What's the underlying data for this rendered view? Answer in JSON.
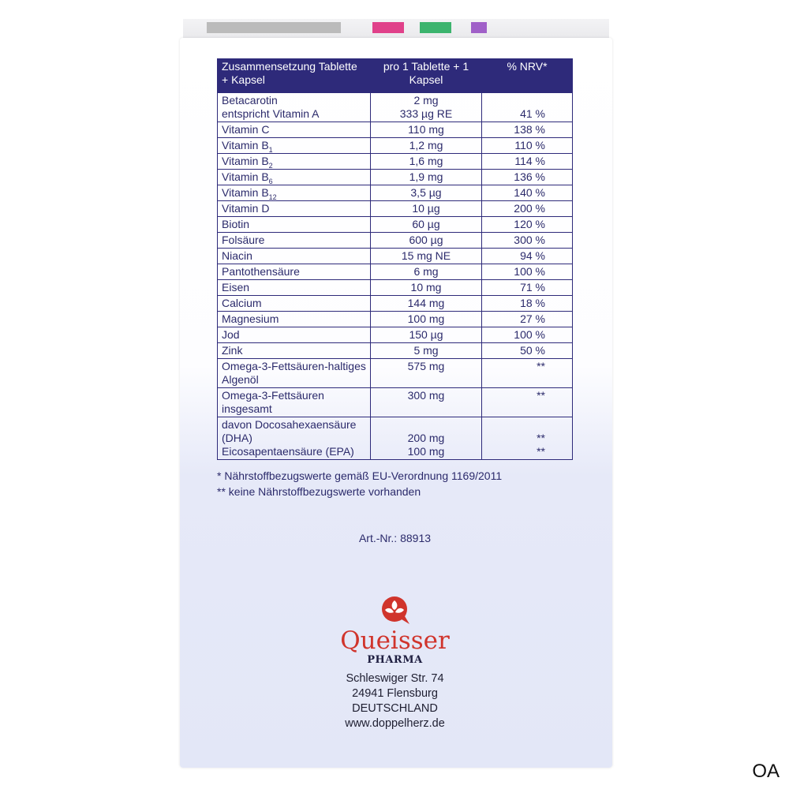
{
  "table": {
    "headers": [
      "Zusammensetzung Tablette + Kapsel",
      "pro 1 Tablette + 1 Kapsel",
      "% NRV*"
    ],
    "rows": [
      {
        "name": "Betacarotin",
        "amount": "2 mg",
        "nrv": ""
      },
      {
        "name": "entspricht Vitamin A",
        "amount": "333 µg RE",
        "nrv": "41 %"
      },
      {
        "name": "Vitamin C",
        "amount": "110 mg",
        "nrv": "138 %"
      },
      {
        "name": "Vitamin B",
        "sub": "1",
        "amount": "1,2 mg",
        "nrv": "110 %"
      },
      {
        "name": "Vitamin B",
        "sub": "2",
        "amount": "1,6 mg",
        "nrv": "114 %"
      },
      {
        "name": "Vitamin B",
        "sub": "6",
        "amount": "1,9 mg",
        "nrv": "136 %"
      },
      {
        "name": "Vitamin B",
        "sub": "12",
        "amount": "3,5 µg",
        "nrv": "140 %"
      },
      {
        "name": "Vitamin D",
        "amount": "10 µg",
        "nrv": "200 %"
      },
      {
        "name": "Biotin",
        "amount": "60 µg",
        "nrv": "120 %"
      },
      {
        "name": "Folsäure",
        "amount": "600 µg",
        "nrv": "300 %"
      },
      {
        "name": "Niacin",
        "amount": "15 mg NE",
        "nrv": "94 %"
      },
      {
        "name": "Pantothensäure",
        "amount": "6 mg",
        "nrv": "100 %"
      },
      {
        "name": "Eisen",
        "amount": "10 mg",
        "nrv": "71 %"
      },
      {
        "name": "Calcium",
        "amount": "144 mg",
        "nrv": "18 %"
      },
      {
        "name": "Magnesium",
        "amount": "100 mg",
        "nrv": "27 %"
      },
      {
        "name": "Jod",
        "amount": "150 µg",
        "nrv": "100 %"
      },
      {
        "name": "Zink",
        "amount": "5 mg",
        "nrv": "50 %"
      },
      {
        "name": "Omega-3-Fettsäuren-haltiges Algenöl",
        "amount": "575 mg",
        "nrv": "**"
      },
      {
        "name": "Omega-3-Fettsäuren insgesamt",
        "amount": "300 mg",
        "nrv": "**"
      },
      {
        "name": "davon Docosahexaensäure (DHA)",
        "amount": "200 mg",
        "nrv": "**"
      },
      {
        "name": "Eicosapentaensäure (EPA)",
        "amount": "100 mg",
        "nrv": "**"
      }
    ]
  },
  "footnotes": [
    "* Nährstoffbezugswerte gemäß EU-Verordnung 1169/2011",
    "** keine Nährstoffbezugswerte vorhanden"
  ],
  "article_number": "Art.-Nr.: 88913",
  "logo": {
    "brand": "Queisser",
    "sub": "PHARMA",
    "color": "#d0342c"
  },
  "address": [
    "Schleswiger Str. 74",
    "24941 Flensburg",
    "DEUTSCHLAND",
    "www.doppelherz.de"
  ],
  "corner_mark": "OA"
}
